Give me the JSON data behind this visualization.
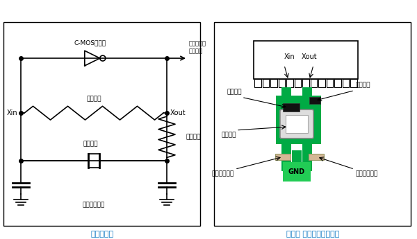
{
  "bg_color": "#ffffff",
  "left_panel": {
    "title": "前振荡电路",
    "title_color": "#0070c0",
    "border": [
      0.02,
      0.05,
      0.46,
      0.88
    ],
    "labels": {
      "xin": "Xin",
      "xout": "Xout",
      "cmos": "C-MOS逆变器",
      "feedback_r": "反馈电阻",
      "crystal": "石英晶体",
      "damping_r": "阻尼电阻",
      "cap": "外部负载电容",
      "next": "进入下一个\n逻辑电路"
    }
  },
  "right_panel": {
    "title": "例如） 零部件的配置例子",
    "title_color": "#0070c0",
    "border": [
      0.51,
      0.05,
      0.97,
      0.88
    ],
    "green_color": "#00aa44",
    "dark_green": "#008833",
    "gnd_color": "#00cc55",
    "black_comp": "#111111",
    "beige_comp": "#d4b896",
    "labels": {
      "xin": "Xin",
      "xout": "Xout",
      "feedback_r": "反馈电阻",
      "crystal": "石英晶体",
      "damping_r": "阻尼电阻",
      "cap_left": "外部负载电容",
      "cap_right": "外部负载电容",
      "gnd": "GND"
    }
  }
}
